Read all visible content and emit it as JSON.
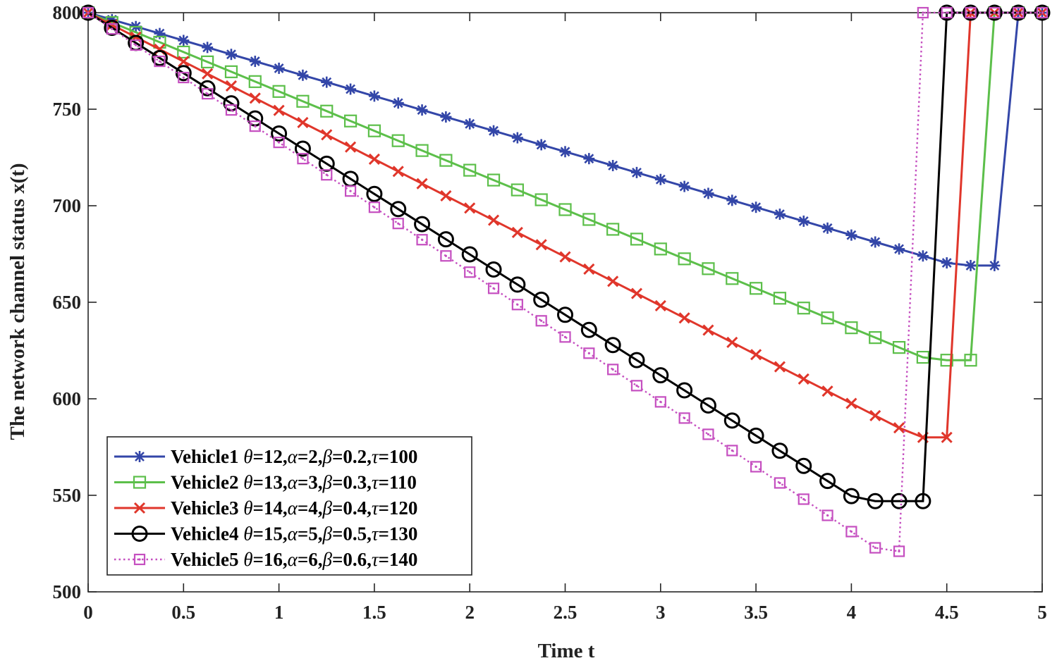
{
  "chart_data": {
    "type": "line",
    "title": "",
    "xlabel": "Time t",
    "ylabel": "The network channel status x(t)",
    "xlim": [
      0,
      5
    ],
    "ylim": [
      500,
      800
    ],
    "xticks": [
      0,
      0.5,
      1,
      1.5,
      2,
      2.5,
      3,
      3.5,
      4,
      4.5,
      5
    ],
    "xtick_labels": [
      "0",
      "0.5",
      "1",
      "1.5",
      "2",
      "2.5",
      "3",
      "3.5",
      "4",
      "4.5",
      "5"
    ],
    "yticks": [
      500,
      550,
      600,
      650,
      700,
      750,
      800
    ],
    "ytick_labels": [
      "500",
      "550",
      "600",
      "650",
      "700",
      "750",
      "800"
    ],
    "grid": false,
    "legend_position": "bottom-left",
    "sample_step": 0.125,
    "series": [
      {
        "name": "Vehicle1",
        "legend_prefix": "Vehicle1 ",
        "legend_params": [
          [
            "θ",
            "=12,"
          ],
          [
            "α",
            "=2,"
          ],
          [
            "β",
            "=0.2,"
          ],
          [
            "τ",
            "=100"
          ]
        ],
        "color": "#3346a8",
        "marker": "asterisk",
        "dash": "solid",
        "start": 800,
        "slope": -28.8,
        "min_value": 669,
        "hold_until": 4.75,
        "reset_at": 4.875,
        "reset_value": 800
      },
      {
        "name": "Vehicle2",
        "legend_prefix": "Vehicle2 ",
        "legend_params": [
          [
            "θ",
            "=13,"
          ],
          [
            "α",
            "=3,"
          ],
          [
            "β",
            "=0.3,"
          ],
          [
            "τ",
            "=110"
          ]
        ],
        "color": "#5cbf4a",
        "marker": "square",
        "dash": "solid",
        "start": 800,
        "slope": -40.8,
        "min_value": 620,
        "hold_until": 4.625,
        "reset_at": 4.75,
        "reset_value": 800
      },
      {
        "name": "Vehicle3",
        "legend_prefix": "Vehicle3 ",
        "legend_params": [
          [
            "θ",
            "=14,"
          ],
          [
            "α",
            "=4,"
          ],
          [
            "β",
            "=0.4,"
          ],
          [
            "τ",
            "=120"
          ]
        ],
        "color": "#e0362b",
        "marker": "x",
        "dash": "solid",
        "start": 800,
        "slope": -50.6,
        "min_value": 580,
        "hold_until": 4.5,
        "reset_at": 4.625,
        "reset_value": 800
      },
      {
        "name": "Vehicle4",
        "legend_prefix": "Vehicle4 ",
        "legend_params": [
          [
            "θ",
            "=15,"
          ],
          [
            "α",
            "=5,"
          ],
          [
            "β",
            "=0.5,"
          ],
          [
            "τ",
            "=130"
          ]
        ],
        "color": "#000000",
        "marker": "circle",
        "dash": "solid",
        "start": 800,
        "slope": -62.6,
        "min_value": 547,
        "hold_until": 4.375,
        "reset_at": 4.5,
        "reset_value": 800
      },
      {
        "name": "Vehicle5",
        "legend_prefix": "Vehicle5 ",
        "legend_params": [
          [
            "θ",
            "=16,"
          ],
          [
            "α",
            "=6,"
          ],
          [
            "β",
            "=0.6,"
          ],
          [
            "τ",
            "=140"
          ]
        ],
        "color": "#c54fc0",
        "marker": "dotsquare",
        "dash": "dotted",
        "start": 800,
        "slope": -67.2,
        "min_value": 521,
        "hold_until": 4.25,
        "reset_at": 4.375,
        "reset_value": 800
      }
    ]
  }
}
